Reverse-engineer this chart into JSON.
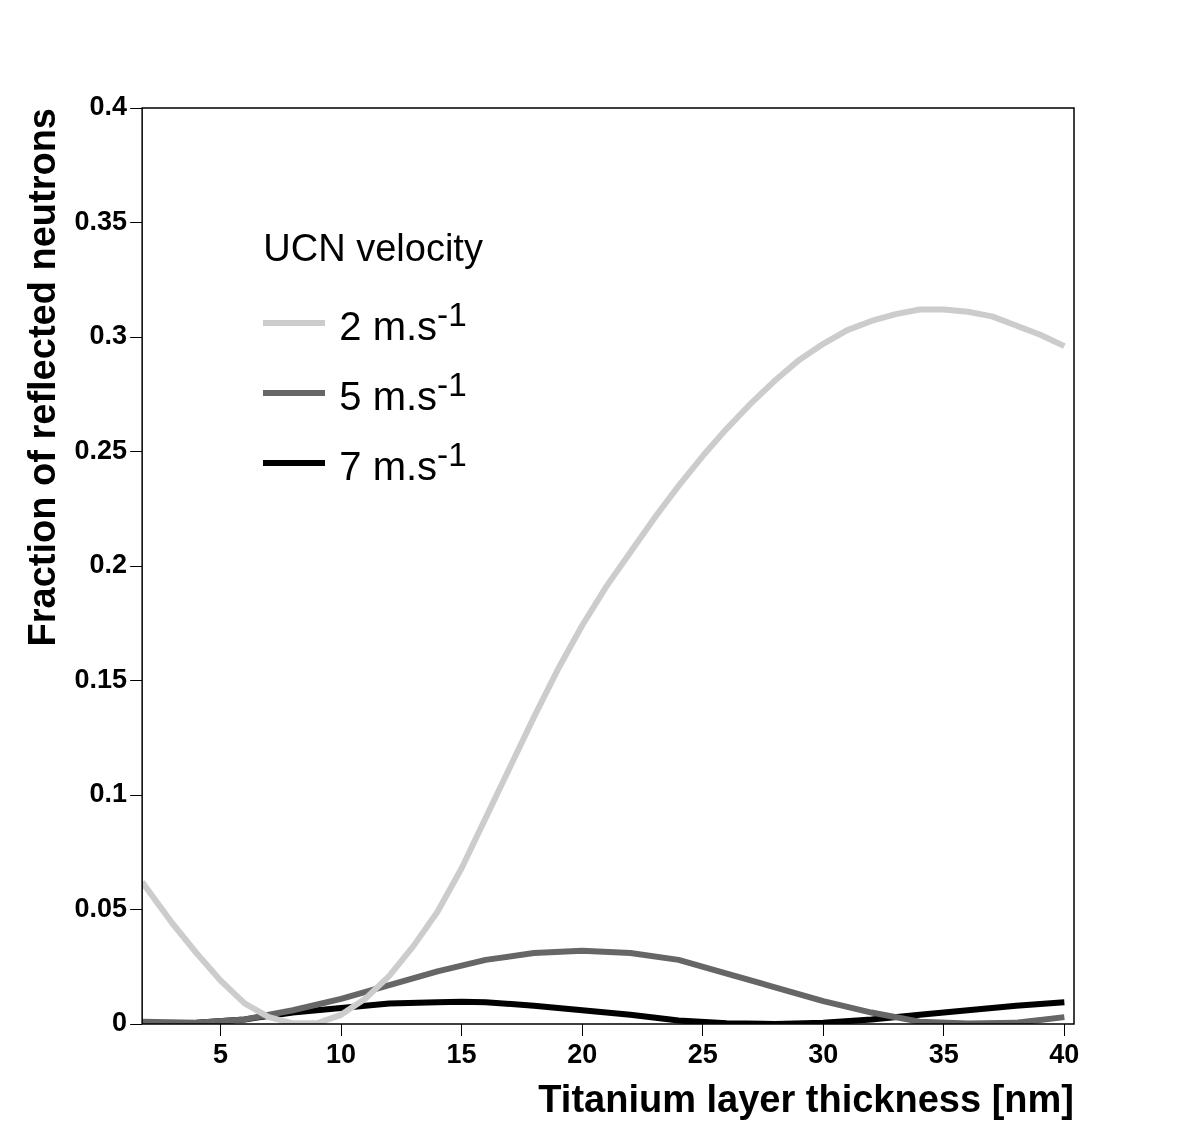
{
  "chart_data": {
    "type": "line",
    "xlabel": "Titanium layer thickness [nm]",
    "ylabel": "Fraction of reflected neutrons",
    "legend_title": "UCN velocity",
    "legend": "top left",
    "grid": false,
    "marker": "none",
    "line_style": "solid",
    "xlim": [
      1.75,
      40.4
    ],
    "xticks": [
      5,
      10,
      15,
      20,
      25,
      30,
      35,
      40
    ],
    "ylim": [
      0,
      0.4
    ],
    "yticks": [
      0,
      0.05,
      0.1,
      0.15,
      0.2,
      0.25,
      0.3,
      0.35,
      0.4
    ],
    "series": [
      {
        "name": "2 m.s$^{-1}$",
        "color": "#cccccc",
        "x": [
          1.75,
          3,
          4,
          5,
          6,
          7,
          8,
          9,
          10,
          11,
          12,
          13,
          14,
          15,
          16,
          17,
          18,
          19,
          20,
          21,
          22,
          23,
          24,
          25,
          26,
          27,
          28,
          29,
          30,
          31,
          32,
          33,
          34,
          35,
          36,
          37,
          38,
          39,
          40
        ],
        "values": [
          0.062,
          0.044,
          0.031,
          0.019,
          0.009,
          0.003,
          0.0003,
          0.0003,
          0.004,
          0.011,
          0.021,
          0.034,
          0.049,
          0.068,
          0.09,
          0.112,
          0.134,
          0.155,
          0.174,
          0.191,
          0.206,
          0.221,
          0.235,
          0.248,
          0.26,
          0.271,
          0.281,
          0.29,
          0.297,
          0.303,
          0.307,
          0.31,
          0.312,
          0.312,
          0.311,
          0.309,
          0.305,
          0.301,
          0.296
        ]
      },
      {
        "name": "5 m.s$^{-1}$",
        "color": "#666666",
        "x": [
          1.75,
          4,
          6,
          8,
          10,
          12,
          14,
          16,
          18,
          20,
          22,
          24,
          26,
          28,
          30,
          32,
          34,
          36,
          38,
          40
        ],
        "values": [
          0.001,
          0.0005,
          0.002,
          0.006,
          0.011,
          0.017,
          0.023,
          0.028,
          0.031,
          0.032,
          0.031,
          0.028,
          0.022,
          0.016,
          0.01,
          0.005,
          0.001,
          0.0002,
          0.0005,
          0.003
        ]
      },
      {
        "name": "7 m.s$^{-1}$",
        "color": "#000000",
        "x": [
          1.75,
          4,
          6,
          8,
          10,
          12,
          14,
          15,
          16,
          18,
          20,
          22,
          24,
          26,
          28,
          30,
          32,
          34,
          36,
          38,
          40
        ],
        "values": [
          0,
          0.0005,
          0.002,
          0.005,
          0.007,
          0.009,
          0.0095,
          0.0097,
          0.0095,
          0.008,
          0.006,
          0.004,
          0.0015,
          0.0003,
          0,
          0.0005,
          0.002,
          0.004,
          0.006,
          0.008,
          0.0095
        ]
      }
    ]
  }
}
